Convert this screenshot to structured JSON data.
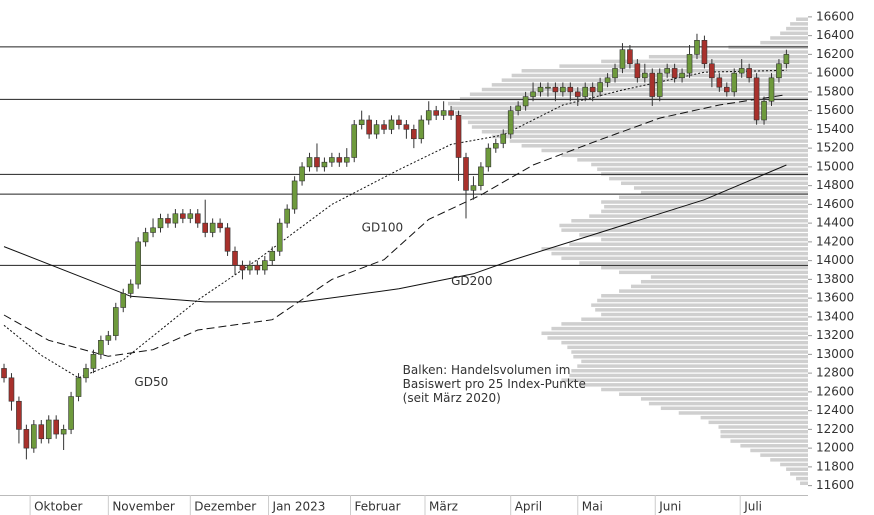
{
  "chart_data": {
    "type": "candlestick",
    "open": [
      12850,
      12750,
      12500,
      12200,
      12000,
      12250,
      12100,
      12300,
      12150,
      12200,
      12550,
      12750,
      12850,
      13000,
      13150,
      13200,
      13500,
      13650,
      13750,
      14200,
      14300,
      14350,
      14450,
      14400,
      14500,
      14450,
      14500,
      14400,
      14300,
      14400,
      14350,
      14100,
      13950,
      13900,
      13950,
      13900,
      14000,
      14100,
      14400,
      14550,
      14850,
      15000,
      15100,
      15000,
      15050,
      15100,
      15050,
      15100,
      15450,
      15500,
      15350,
      15450,
      15400,
      15500,
      15450,
      15400,
      15300,
      15500,
      15600,
      15550,
      15600,
      15550,
      15100,
      14750,
      14800,
      15000,
      15200,
      15250,
      15350,
      15600,
      15650,
      15750,
      15800,
      15850,
      15850,
      15800,
      15850,
      15800,
      15750,
      15850,
      15800,
      15900,
      15950,
      16050,
      16250,
      16100,
      15950,
      16000,
      15750,
      16000,
      16050,
      15950,
      16000,
      16200,
      16350,
      16100,
      15950,
      15850,
      15800,
      16000,
      16050,
      15950,
      15500,
      15700,
      15950,
      16100
    ],
    "high": [
      12900,
      12800,
      12550,
      12250,
      12300,
      12300,
      12350,
      12350,
      12250,
      12600,
      12800,
      12900,
      13050,
      13200,
      13250,
      13550,
      13700,
      13800,
      14250,
      14350,
      14450,
      14500,
      14500,
      14550,
      14550,
      14550,
      14550,
      14650,
      14450,
      14450,
      14400,
      14150,
      14000,
      14000,
      14000,
      14050,
      14150,
      14450,
      14600,
      14900,
      15050,
      15150,
      15250,
      15100,
      15150,
      15150,
      15200,
      15500,
      15600,
      15550,
      15500,
      15500,
      15550,
      15550,
      15500,
      15450,
      15550,
      15700,
      15650,
      15700,
      15650,
      15600,
      15150,
      14900,
      15050,
      15250,
      15300,
      15400,
      15650,
      15700,
      15800,
      15900,
      15900,
      15900,
      15900,
      15900,
      15900,
      15850,
      15900,
      15900,
      15950,
      16000,
      16100,
      16320,
      16300,
      16150,
      16100,
      16050,
      16050,
      16100,
      16100,
      16050,
      16300,
      16420,
      16400,
      16150,
      16000,
      15900,
      16050,
      16150,
      16100,
      16000,
      15750,
      16000,
      16150,
      16250
    ],
    "low": [
      12700,
      12400,
      12050,
      11880,
      11950,
      12050,
      12050,
      12100,
      11980,
      12150,
      12500,
      12700,
      12800,
      12950,
      13100,
      13150,
      13450,
      13600,
      13700,
      14150,
      14250,
      14300,
      14350,
      14350,
      14400,
      14400,
      14350,
      14250,
      14250,
      14300,
      14050,
      13850,
      13800,
      13850,
      13850,
      13850,
      13950,
      14050,
      14350,
      14500,
      14800,
      14950,
      14950,
      14950,
      15000,
      15000,
      15000,
      15050,
      15400,
      15300,
      15300,
      15350,
      15350,
      15400,
      15300,
      15200,
      15250,
      15450,
      15500,
      15500,
      15500,
      14850,
      14450,
      14650,
      14750,
      14950,
      15150,
      15200,
      15300,
      15550,
      15600,
      15700,
      15750,
      15750,
      15700,
      15750,
      15700,
      15650,
      15700,
      15700,
      15750,
      15850,
      15900,
      16000,
      16050,
      15900,
      15900,
      15650,
      15700,
      15950,
      15900,
      15900,
      15950,
      16150,
      16050,
      15850,
      15800,
      15750,
      15750,
      15950,
      15900,
      15450,
      15450,
      15650,
      15900,
      16050
    ],
    "close": [
      12750,
      12500,
      12200,
      12000,
      12250,
      12100,
      12300,
      12150,
      12200,
      12550,
      12750,
      12850,
      13000,
      13150,
      13200,
      13500,
      13650,
      13750,
      14200,
      14300,
      14350,
      14450,
      14400,
      14500,
      14450,
      14500,
      14400,
      14300,
      14400,
      14350,
      14100,
      13950,
      13900,
      13950,
      13900,
      14000,
      14100,
      14400,
      14550,
      14850,
      15000,
      15100,
      15000,
      15050,
      15100,
      15050,
      15100,
      15450,
      15500,
      15350,
      15450,
      15400,
      15500,
      15450,
      15400,
      15300,
      15500,
      15600,
      15550,
      15600,
      15550,
      15100,
      14750,
      14800,
      15000,
      15200,
      15250,
      15350,
      15600,
      15650,
      15750,
      15800,
      15850,
      15850,
      15800,
      15850,
      15800,
      15750,
      15850,
      15800,
      15900,
      15950,
      16050,
      16250,
      16100,
      15950,
      16000,
      15750,
      16000,
      16050,
      15950,
      16000,
      16200,
      16350,
      16100,
      15950,
      15850,
      15800,
      16000,
      16050,
      15950,
      15500,
      15700,
      15950,
      16100,
      16200
    ],
    "up_color": "#6e9a3c",
    "down_color": "#a8312c",
    "moving_averages": [
      {
        "name": "GD50",
        "dash": "2,2",
        "x": [
          0,
          5,
          10,
          16,
          26,
          34,
          44,
          53,
          60,
          67,
          75,
          83,
          94,
          105
        ],
        "values": [
          13310,
          12990,
          12750,
          12940,
          13580,
          14010,
          14600,
          14970,
          15240,
          15340,
          15660,
          15820,
          16010,
          16030
        ]
      },
      {
        "name": "GD100",
        "dash": "8,4",
        "x": [
          0,
          6,
          14,
          20,
          26,
          36,
          44,
          51,
          57,
          64,
          71,
          80,
          88,
          96,
          105
        ],
        "values": [
          13420,
          13150,
          12980,
          13050,
          13260,
          13370,
          13800,
          14010,
          14440,
          14700,
          15020,
          15290,
          15520,
          15660,
          15770
        ]
      },
      {
        "name": "GD200",
        "dash": "none",
        "x": [
          0,
          17,
          27,
          40,
          53,
          63,
          68,
          80,
          94,
          105
        ],
        "values": [
          14150,
          13620,
          13560,
          13560,
          13700,
          13860,
          14000,
          14300,
          14650,
          15020
        ]
      }
    ],
    "volume_profile": {
      "color": "#cfcfcf",
      "bins": [
        11600,
        11650,
        11700,
        11750,
        11800,
        11850,
        11900,
        11950,
        12000,
        12050,
        12100,
        12150,
        12200,
        12250,
        12300,
        12350,
        12400,
        12450,
        12500,
        12550,
        12600,
        12650,
        12700,
        12750,
        12800,
        12850,
        12900,
        12950,
        13000,
        13050,
        13100,
        13150,
        13200,
        13250,
        13300,
        13350,
        13400,
        13450,
        13500,
        13550,
        13600,
        13650,
        13700,
        13750,
        13800,
        13850,
        13900,
        13950,
        14000,
        14050,
        14100,
        14150,
        14200,
        14250,
        14300,
        14350,
        14400,
        14450,
        14500,
        14550,
        14600,
        14650,
        14700,
        14750,
        14800,
        14850,
        14900,
        14950,
        15000,
        15050,
        15100,
        15150,
        15200,
        15250,
        15300,
        15350,
        15400,
        15450,
        15500,
        15550,
        15600,
        15650,
        15700,
        15750,
        15800,
        15850,
        15900,
        15950,
        16000,
        16050,
        16100,
        16150,
        16200,
        16250,
        16300,
        16350,
        16400,
        16450,
        16500,
        16550,
        16600
      ],
      "values": [
        8,
        12,
        18,
        22,
        28,
        38,
        48,
        58,
        68,
        78,
        88,
        88,
        90,
        100,
        108,
        130,
        148,
        160,
        168,
        190,
        208,
        230,
        248,
        240,
        238,
        232,
        228,
        236,
        238,
        242,
        248,
        262,
        268,
        258,
        248,
        228,
        208,
        214,
        218,
        212,
        208,
        190,
        178,
        168,
        158,
        190,
        208,
        230,
        248,
        258,
        268,
        240,
        208,
        230,
        248,
        250,
        238,
        220,
        208,
        205,
        208,
        190,
        168,
        175,
        188,
        200,
        208,
        212,
        218,
        232,
        248,
        268,
        288,
        300,
        318,
        328,
        338,
        342,
        348,
        355,
        358,
        362,
        350,
        340,
        328,
        318,
        308,
        298,
        288,
        250,
        208,
        160,
        108,
        80,
        48,
        38,
        28,
        22,
        18,
        12
      ]
    },
    "hlines": [
      16280,
      15720,
      14920,
      14710,
      13950
    ],
    "labels": [
      {
        "text": "GD50",
        "x": 17.5,
        "y": 12700
      },
      {
        "text": "GD100",
        "x": 48,
        "y": 14350
      },
      {
        "text": "GD200",
        "x": 60,
        "y": 13780
      }
    ],
    "annotation": [
      "Balken: Handelsvolumen im",
      "Basiswert pro 25 Index-Punkte",
      "(seit März 2020)"
    ],
    "annotation_pos": {
      "x": 53.5,
      "y": 12830
    },
    "xlim": [
      -0.54,
      107.9
    ],
    "xticks": [
      {
        "value": 3.5,
        "label": "Oktober"
      },
      {
        "value": 14,
        "label": "November"
      },
      {
        "value": 25,
        "label": "Dezember"
      },
      {
        "value": 35.5,
        "label": "Jan 2023"
      },
      {
        "value": 46.5,
        "label": "Februar"
      },
      {
        "value": 56.5,
        "label": "März"
      },
      {
        "value": 68,
        "label": "April"
      },
      {
        "value": 77,
        "label": "Mai"
      },
      {
        "value": 87.4,
        "label": "Juni"
      },
      {
        "value": 98.8,
        "label": "Juli"
      }
    ],
    "ylim": [
      11500,
      16780
    ],
    "yticks": [
      11600,
      11800,
      12000,
      12200,
      12400,
      12600,
      12800,
      13000,
      13200,
      13400,
      13600,
      13800,
      14000,
      14200,
      14400,
      14600,
      14800,
      15000,
      15200,
      15400,
      15600,
      15800,
      16000,
      16200,
      16400,
      16600
    ]
  }
}
